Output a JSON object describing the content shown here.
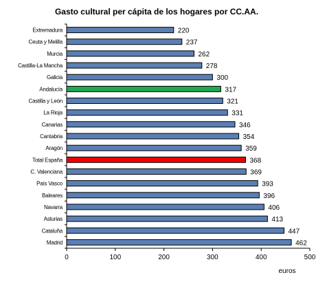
{
  "chart_data": {
    "type": "bar",
    "orientation": "horizontal",
    "title": "Gasto cultural per cápita de los hogares por CC.AA.",
    "xlabel": "euros",
    "ylabel": "",
    "xlim": [
      0,
      500
    ],
    "ticks": [
      "0",
      "100",
      "200",
      "300",
      "400",
      "500"
    ],
    "categories": [
      "Extremadura",
      "Ceuta y Melilla",
      "Murcia",
      "Castilla-La Mancha",
      "Galicia",
      "Andalucía",
      "Castilla y León",
      "La Rioja",
      "Canarias",
      "Cantabria",
      "Aragón",
      "Total España",
      "C. Valenciana",
      "País Vasco",
      "Baleares",
      "Navarra",
      "Asturias",
      "Cataluña",
      "Madrid"
    ],
    "values": [
      220,
      237,
      262,
      278,
      300,
      317,
      321,
      331,
      346,
      354,
      359,
      368,
      369,
      393,
      396,
      406,
      413,
      447,
      462
    ],
    "colors": {
      "default": "#5b7fb5",
      "highlight_andalucia": "#1fa84f",
      "highlight_total": "#ee0000",
      "outline": "#000000"
    },
    "highlight": {
      "Andalucía": "#1fa84f",
      "Total España": "#ee0000"
    },
    "grid": false,
    "legend": "none"
  }
}
